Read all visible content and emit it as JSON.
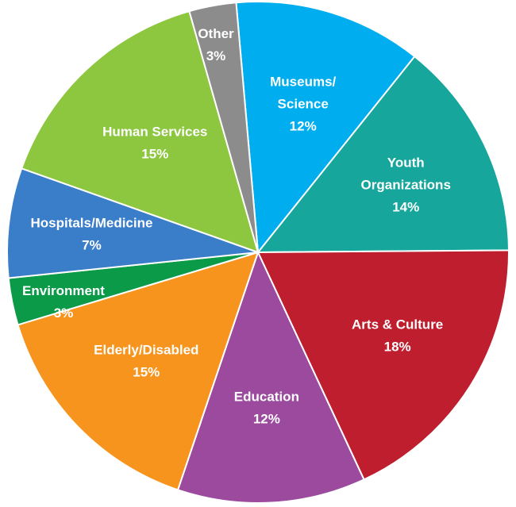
{
  "chart_data": {
    "type": "pie",
    "title": "",
    "slices": [
      {
        "label": "Museums/\nScience",
        "pct": "12%",
        "value": 12,
        "color": "#00AEEF"
      },
      {
        "label": "Youth\nOrganizations",
        "pct": "14%",
        "value": 14,
        "color": "#16A69C"
      },
      {
        "label": "Arts & Culture",
        "pct": "18%",
        "value": 18,
        "color": "#BE1E2D"
      },
      {
        "label": "Education",
        "pct": "12%",
        "value": 12,
        "color": "#9B4A9E"
      },
      {
        "label": "Elderly/Disabled",
        "pct": "15%",
        "value": 15,
        "color": "#F7941D"
      },
      {
        "label": "Environment",
        "pct": "3%",
        "value": 3,
        "color": "#0A9A48"
      },
      {
        "label": "Hospitals/Medicine",
        "pct": "7%",
        "value": 7,
        "color": "#3A7DC9"
      },
      {
        "label": "Human Services",
        "pct": "15%",
        "value": 15,
        "color": "#8DC63F"
      },
      {
        "label": "Other",
        "pct": "3%",
        "value": 3,
        "color": "#8C8C8C"
      }
    ]
  }
}
